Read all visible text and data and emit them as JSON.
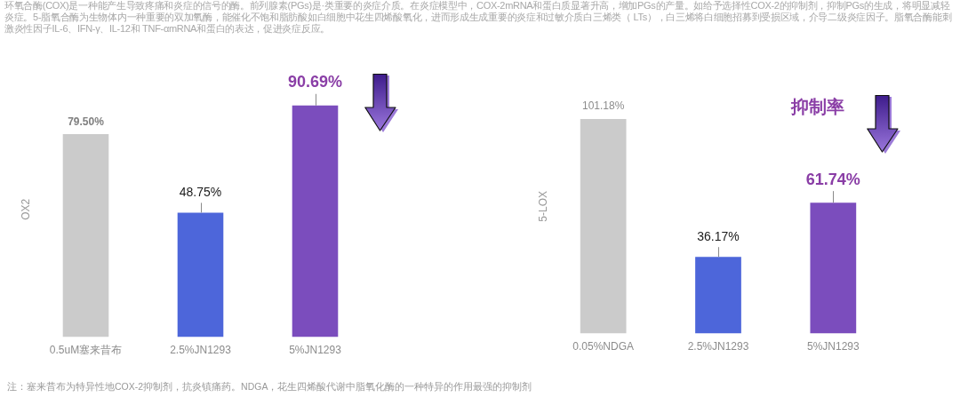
{
  "chart_data": [
    {
      "type": "bar",
      "ylabel": "OX2",
      "categories": [
        "0.5uM塞来昔布",
        "2.5%JN1293",
        "5%JN1293"
      ],
      "values": [
        79.5,
        48.75,
        90.69
      ],
      "colors": [
        "#cbcbcb",
        "#4d66da",
        "#7b4dbd"
      ],
      "value_labels": [
        "79.50%",
        "48.75%",
        "90.69%"
      ],
      "tick_labels": "x",
      "annotations": [
        "环氧合酶(COX)是一种能产生导致疼痛和炎症的信号的酶。前列腺素(PGs)是·类重要的炎症介质。在炎症模型中，COX-2mRNA和蛋白质显著升高，增加PGs的产量。如给予选择性COX-2的抑制剂，抑制PGs的生成，将明显减轻炎症。5-脂氧合酶为生物体内一种重要的双加氧酶，能催化不饱和脂肪酸如白细胞中花生四烯酸氧化，进而形成生成重要的炎症和过敏介质白三烯类（ LTs），白三烯将白细胞招募到受损区域，介导二级炎症因子。脂氧合酶能刺激炎性因子IL-6、IFN-γ、IL-12和 TNF-αmRNA和蛋白的表达，促进炎症反应。",
        "注：塞来昔布为特异性地COX-2抑制剂，抗炎镇痛药。NDGA，花生四烯酸代谢中脂氧化酶的一种特异的作用最强的抑制剂"
      ]
    },
    {
      "type": "bar",
      "ylabel": "5-LOX",
      "categories": [
        "0.05%NDGA",
        "2.5%JN1293",
        "5%JN1293"
      ],
      "values": [
        101.18,
        36.17,
        61.74
      ],
      "colors": [
        "#cbcbcb",
        "#4d66da",
        "#7b4dbd"
      ],
      "value_labels": [
        "101.18%",
        "36.17%",
        "61.74%"
      ],
      "tick_labels": "x",
      "annotations": [
        "抑制率"
      ]
    }
  ]
}
